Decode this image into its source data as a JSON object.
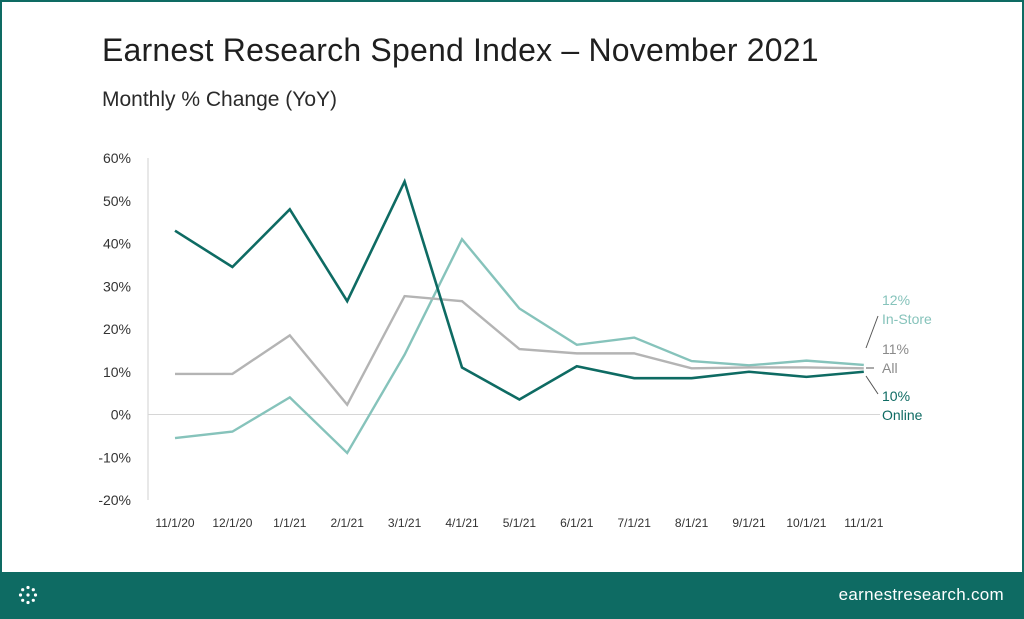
{
  "header": {
    "title": "Earnest Research Spend Index – November 2021",
    "subtitle": "Monthly % Change (YoY)"
  },
  "footer": {
    "url": "earnestresearch.com",
    "logo_icon": "earnest-logo-icon"
  },
  "chart_data": {
    "type": "line",
    "title": "Earnest Research Spend Index – November 2021",
    "subtitle": "Monthly % Change (YoY)",
    "xlabel": "",
    "ylabel": "",
    "ylim": [
      -20,
      60
    ],
    "yticks": [
      60,
      50,
      40,
      30,
      20,
      10,
      0,
      -10,
      -20
    ],
    "ytick_labels": [
      "60%",
      "50%",
      "40%",
      "30%",
      "20%",
      "10%",
      "0%",
      "-10%",
      "-20%"
    ],
    "categories": [
      "11/1/20",
      "12/1/20",
      "1/1/21",
      "2/1/21",
      "3/1/21",
      "4/1/21",
      "5/1/21",
      "6/1/21",
      "7/1/21",
      "8/1/21",
      "9/1/21",
      "10/1/21",
      "11/1/21"
    ],
    "series": [
      {
        "name": "Online",
        "color": "#0e6b63",
        "end_label_value": "10%",
        "end_label_name": "Online",
        "values": [
          43,
          34.5,
          48,
          26.5,
          54.5,
          11,
          3.5,
          11.3,
          8.5,
          8.5,
          10,
          8.8,
          10
        ]
      },
      {
        "name": "All",
        "color": "#b4b4b4",
        "end_label_value": "11%",
        "end_label_name": "All",
        "values": [
          9.5,
          9.5,
          18.5,
          2.3,
          27.7,
          26.5,
          15.3,
          14.3,
          14.3,
          10.8,
          11,
          11,
          10.8
        ]
      },
      {
        "name": "In-Store",
        "color": "#86c3bb",
        "end_label_value": "12%",
        "end_label_name": "In-Store",
        "values": [
          -5.5,
          -4,
          4,
          -9,
          14,
          41,
          24.8,
          16.3,
          18,
          12.5,
          11.5,
          12.6,
          11.6
        ]
      }
    ]
  }
}
